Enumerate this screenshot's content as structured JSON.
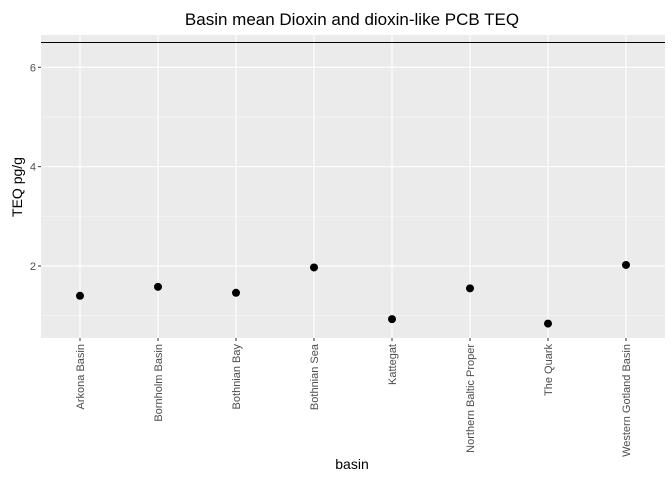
{
  "chart_data": {
    "type": "scatter",
    "title": "Basin mean Dioxin and dioxin-like PCB TEQ",
    "xlabel": "basin",
    "ylabel": "TEQ pg/g",
    "categories": [
      "Arkona Basin",
      "Bornholm Basin",
      "Bothnian Bay",
      "Bothnian Sea",
      "Kattegat",
      "Northern Baltic Proper",
      "The Quark",
      "Western Gotland Basin"
    ],
    "values": [
      1.4,
      1.58,
      1.46,
      1.97,
      0.93,
      1.55,
      0.84,
      2.02
    ],
    "y_ticks": [
      2,
      4,
      6
    ],
    "ylim": [
      0.55,
      6.65
    ],
    "reference_line_y": 6.5,
    "grid": true,
    "panel_background": "#ebebeb",
    "grid_major_color": "#ffffff",
    "point_color": "#000000",
    "line_color": "#000000"
  }
}
